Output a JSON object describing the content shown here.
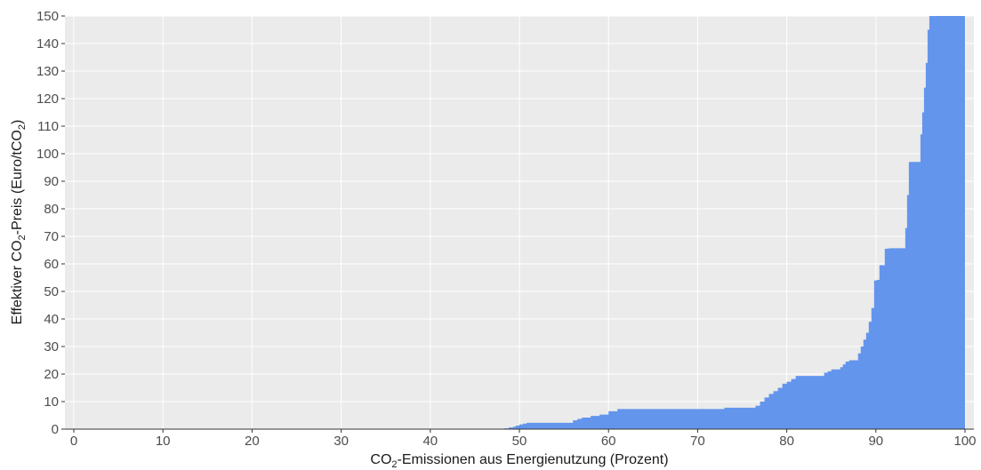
{
  "chart_data": {
    "type": "area",
    "step": true,
    "xlabel": {
      "prefix": "CO",
      "sub": "2",
      "suffix": "-Emissionen aus Energienutzung (Prozent)"
    },
    "ylabel": {
      "prefix": "Effektiver CO",
      "sub1": "2",
      "middle": "-Preis (Euro/tCO",
      "sub2": "2",
      "suffix": ")"
    },
    "xlim": [
      0,
      100
    ],
    "ylim": [
      0,
      150
    ],
    "x_ticks": [
      0,
      10,
      20,
      30,
      40,
      50,
      60,
      70,
      80,
      90,
      100
    ],
    "y_ticks": [
      0,
      10,
      20,
      30,
      40,
      50,
      60,
      70,
      80,
      90,
      100,
      110,
      120,
      130,
      140,
      150
    ],
    "grid": true,
    "legend": "none",
    "colors": {
      "fill": "#6495ED",
      "panel": "#EBEBEB",
      "grid": "#FFFFFF",
      "axis": "#333333"
    },
    "x": [
      0,
      48.3,
      48.8,
      49.3,
      49.6,
      50.0,
      50.4,
      50.8,
      56.0,
      56.5,
      57.0,
      58.0,
      59.0,
      60.0,
      61.0,
      73.0,
      76.5,
      77.0,
      77.5,
      78.0,
      78.5,
      79.0,
      79.5,
      80.0,
      80.5,
      81.0,
      84.2,
      84.6,
      85.0,
      86.0,
      86.3,
      86.6,
      87.0,
      88.0,
      88.3,
      88.6,
      88.9,
      89.2,
      89.5,
      89.8,
      90.1,
      90.4,
      91.0,
      91.3,
      91.6,
      93.3,
      93.5,
      93.7,
      95.0,
      95.2,
      95.4,
      95.6,
      95.8,
      96.0,
      96.2,
      96.5,
      100
    ],
    "y": [
      0,
      0.3,
      0.6,
      0.9,
      1.3,
      1.7,
      2.0,
      2.3,
      3.2,
      3.7,
      4.2,
      4.8,
      5.3,
      6.5,
      7.3,
      7.8,
      8.5,
      10.0,
      11.5,
      12.8,
      13.8,
      15.0,
      16.5,
      17.2,
      18.2,
      19.3,
      20.5,
      21.0,
      21.7,
      22.5,
      23.5,
      24.5,
      25.0,
      27.5,
      30.0,
      32.5,
      35.0,
      39.0,
      44.0,
      54.0,
      54.2,
      59.5,
      65.5,
      65.6,
      65.7,
      73.0,
      85.0,
      97.0,
      107.0,
      115.0,
      124.0,
      133.0,
      145.0,
      150.0,
      150.0,
      150.0,
      150.0
    ]
  }
}
